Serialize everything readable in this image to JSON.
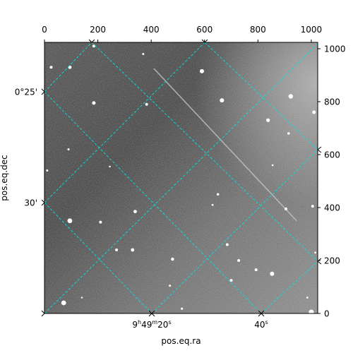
{
  "figure": {
    "xlabel": "pos.eq.ra",
    "ylabel": "pos.eq.dec",
    "pixel_axis": {
      "xlim": [
        0,
        1024
      ],
      "ylim": [
        0,
        1024
      ],
      "top_ticks": [
        "0",
        "200",
        "400",
        "600",
        "800",
        "1000"
      ],
      "right_ticks": [
        "0",
        "200",
        "400",
        "600",
        "800",
        "1000"
      ],
      "tick_values": [
        0,
        200,
        400,
        600,
        800,
        1000
      ]
    },
    "world_ticks": {
      "dec_left": [
        {
          "label": "0°25'",
          "value": 0.41667
        },
        {
          "label": "30'",
          "value": 0.5
        }
      ],
      "ra_bottom": [
        {
          "hours": "9",
          "h": "h",
          "minutes": "49",
          "m": "m",
          "seconds": "20",
          "s": "s"
        },
        {
          "seconds": "40",
          "s": "s"
        }
      ]
    },
    "grid_color": "#00e5e5",
    "image": {
      "description_colormap": "grayscale",
      "stars": [
        {
          "x": 95,
          "y": 930,
          "r": 2.4
        },
        {
          "x": 185,
          "y": 1010,
          "r": 2
        },
        {
          "x": 25,
          "y": 930,
          "r": 2
        },
        {
          "x": 370,
          "y": 980,
          "r": 1.5
        },
        {
          "x": 590,
          "y": 915,
          "r": 3
        },
        {
          "x": 665,
          "y": 805,
          "r": 3
        },
        {
          "x": 185,
          "y": 795,
          "r": 2.5
        },
        {
          "x": 383,
          "y": 790,
          "r": 2
        },
        {
          "x": 923,
          "y": 820,
          "r": 3.2
        },
        {
          "x": 1010,
          "y": 760,
          "r": 2.5
        },
        {
          "x": 838,
          "y": 730,
          "r": 2.6
        },
        {
          "x": 90,
          "y": 620,
          "r": 1.5
        },
        {
          "x": 10,
          "y": 540,
          "r": 1.5
        },
        {
          "x": 915,
          "y": 680,
          "r": 1.8
        },
        {
          "x": 650,
          "y": 450,
          "r": 1.8
        },
        {
          "x": 630,
          "y": 410,
          "r": 1.4
        },
        {
          "x": 340,
          "y": 385,
          "r": 2.4
        },
        {
          "x": 210,
          "y": 345,
          "r": 2
        },
        {
          "x": 95,
          "y": 350,
          "r": 3.4
        },
        {
          "x": 905,
          "y": 395,
          "r": 2
        },
        {
          "x": 1005,
          "y": 405,
          "r": 2
        },
        {
          "x": 685,
          "y": 260,
          "r": 2
        },
        {
          "x": 270,
          "y": 240,
          "r": 2
        },
        {
          "x": 330,
          "y": 240,
          "r": 2.4
        },
        {
          "x": 480,
          "y": 205,
          "r": 2.2
        },
        {
          "x": 728,
          "y": 200,
          "r": 2
        },
        {
          "x": 793,
          "y": 165,
          "r": 2
        },
        {
          "x": 700,
          "y": 125,
          "r": 2
        },
        {
          "x": 853,
          "y": 150,
          "r": 3
        },
        {
          "x": 470,
          "y": 105,
          "r": 1.5
        },
        {
          "x": 72,
          "y": 40,
          "r": 3.4
        },
        {
          "x": 1000,
          "y": 5,
          "r": 3.6
        },
        {
          "x": 515,
          "y": 18,
          "r": 1.6
        },
        {
          "x": 140,
          "y": 60,
          "r": 1.2
        },
        {
          "x": 985,
          "y": 60,
          "r": 1.4
        },
        {
          "x": 245,
          "y": 555,
          "r": 1.3
        },
        {
          "x": 855,
          "y": 560,
          "r": 1.3
        },
        {
          "x": 1015,
          "y": 230,
          "r": 1.4
        }
      ],
      "streak": {
        "x1": 410,
        "y1": 925,
        "x2": 945,
        "y2": 350
      }
    }
  }
}
